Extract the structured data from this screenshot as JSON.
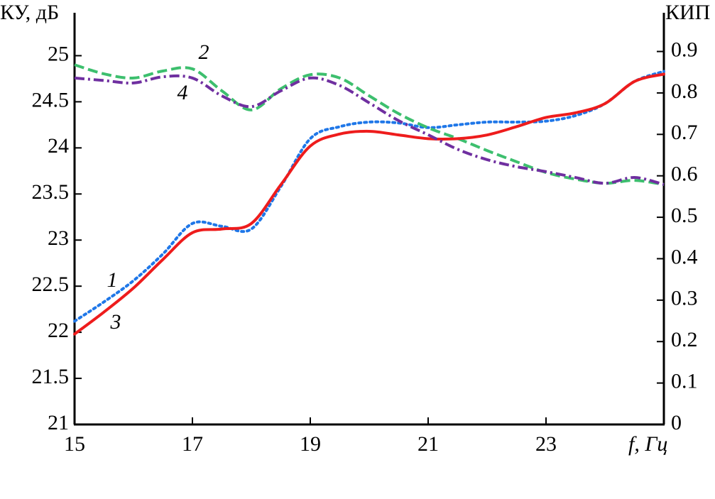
{
  "chart_data": {
    "type": "line",
    "y_label": "КУ, дБ",
    "y2_label": "КИП",
    "x_label": "f, Гц",
    "x": [
      15,
      15.5,
      16,
      16.5,
      17,
      17.5,
      18,
      18.5,
      19,
      19.5,
      20,
      20.5,
      21,
      21.5,
      22,
      22.5,
      23,
      23.5,
      24,
      24.5,
      25
    ],
    "xlim": [
      15,
      25
    ],
    "xticks": [
      15,
      17,
      19,
      21,
      23
    ],
    "ylim": [
      21,
      25.45
    ],
    "yticks": [
      21,
      21.5,
      22,
      22.5,
      23,
      23.5,
      24,
      24.5,
      25
    ],
    "y2lim": [
      0,
      0.99
    ],
    "y2ticks": [
      0,
      0.1,
      0.2,
      0.3,
      0.4,
      0.5,
      0.6,
      0.7,
      0.8,
      0.9
    ],
    "series": [
      {
        "name": "1",
        "color": "#1f77e8",
        "dash": "dotted",
        "values": [
          22.12,
          22.33,
          22.56,
          22.85,
          23.18,
          23.15,
          23.12,
          23.58,
          24.1,
          24.23,
          24.28,
          24.27,
          24.22,
          24.25,
          24.28,
          24.28,
          24.29,
          24.35,
          24.48,
          24.72,
          24.83
        ]
      },
      {
        "name": "2",
        "color": "#3dbf6e",
        "dash": "dashed",
        "axis": "y2",
        "values": [
          0.868,
          0.846,
          0.836,
          0.853,
          0.858,
          0.805,
          0.759,
          0.81,
          0.844,
          0.836,
          0.793,
          0.75,
          0.716,
          0.69,
          0.661,
          0.634,
          0.608,
          0.592,
          0.582,
          0.589,
          0.579
        ]
      },
      {
        "name": "3",
        "color": "#ee1c1c",
        "dash": "solid",
        "values": [
          21.98,
          22.22,
          22.48,
          22.79,
          23.08,
          23.12,
          23.18,
          23.6,
          24.02,
          24.15,
          24.18,
          24.14,
          24.1,
          24.1,
          24.14,
          24.23,
          24.33,
          24.38,
          24.48,
          24.72,
          24.8
        ]
      },
      {
        "name": "4",
        "color": "#6f2fa0",
        "dash": "dashdot",
        "axis": "y2",
        "values": [
          0.836,
          0.83,
          0.824,
          0.839,
          0.836,
          0.793,
          0.767,
          0.805,
          0.836,
          0.818,
          0.776,
          0.733,
          0.699,
          0.664,
          0.639,
          0.622,
          0.61,
          0.596,
          0.582,
          0.596,
          0.579
        ]
      }
    ]
  }
}
